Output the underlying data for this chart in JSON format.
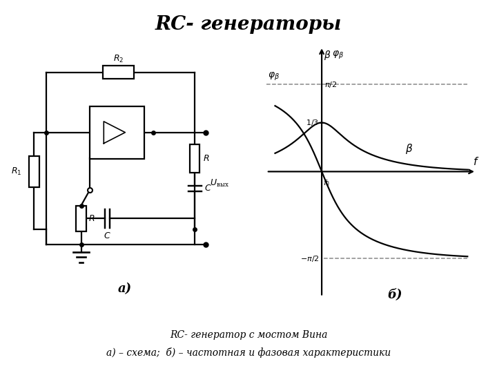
{
  "title": "RC- генераторы",
  "title_fontsize": 20,
  "title_fontstyle": "italic",
  "title_fontweight": "bold",
  "caption_line1": "RC- генератор с мостом Вина",
  "caption_line2": "а) – схема;  б) – частотная и фазовая характеристики",
  "label_a": "а)",
  "label_b": "б)",
  "bg_color": "#ffffff",
  "line_color": "#000000",
  "dashed_color": "#888888"
}
